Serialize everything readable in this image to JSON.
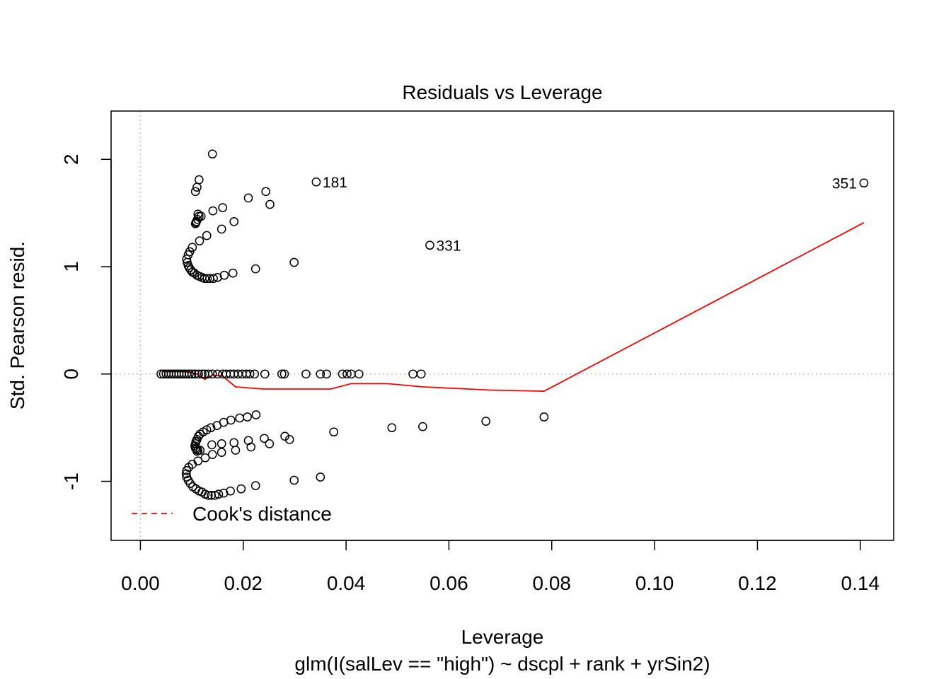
{
  "chart_data": {
    "type": "scatter",
    "title": "Residuals vs Leverage",
    "xlabel": "Leverage",
    "subtitle": "glm(I(salLev == \"high\") ~ dscpl + rank + yrSin2)",
    "ylabel": "Std. Pearson resid.",
    "xlim": [
      -0.0057,
      0.1465
    ],
    "ylim": [
      -1.55,
      2.45
    ],
    "x_ticks": [
      "0.00",
      "0.02",
      "0.04",
      "0.06",
      "0.08",
      "0.10",
      "0.12",
      "0.14"
    ],
    "y_ticks": [
      "-1",
      "0",
      "1",
      "2"
    ],
    "reference_lines": {
      "x": 0,
      "y": 0,
      "style": "dotted",
      "color": "#bebebe"
    },
    "point_color": "#000000",
    "smooth_color": "#ff0000",
    "legend": {
      "position": "bottom-left",
      "entries": [
        "Cook's distance"
      ],
      "line_style": "dashed",
      "color": "#ff0000"
    },
    "labeled_points": [
      {
        "label": "181",
        "x": 0.0342,
        "y": 1.79
      },
      {
        "label": "331",
        "x": 0.0563,
        "y": 1.2
      },
      {
        "label": "351",
        "x": 0.1407,
        "y": 1.78
      }
    ],
    "points": [
      [
        0.014,
        2.05
      ],
      [
        0.0114,
        1.81
      ],
      [
        0.011,
        1.74
      ],
      [
        0.0107,
        1.7
      ],
      [
        0.016,
        1.55
      ],
      [
        0.0141,
        1.52
      ],
      [
        0.0244,
        1.7
      ],
      [
        0.021,
        1.64
      ],
      [
        0.0252,
        1.58
      ],
      [
        0.0182,
        1.42
      ],
      [
        0.0158,
        1.35
      ],
      [
        0.0129,
        1.29
      ],
      [
        0.0112,
        1.49
      ],
      [
        0.0114,
        1.47
      ],
      [
        0.0118,
        1.47
      ],
      [
        0.0111,
        1.44
      ],
      [
        0.0109,
        1.42
      ],
      [
        0.0107,
        1.4
      ],
      [
        0.0108,
        1.41
      ],
      [
        0.0115,
        1.24
      ],
      [
        0.0101,
        1.18
      ],
      [
        0.0096,
        1.14
      ],
      [
        0.0093,
        1.11
      ],
      [
        0.009,
        1.07
      ],
      [
        0.0091,
        1.04
      ],
      [
        0.0093,
        1.01
      ],
      [
        0.0095,
        0.99
      ],
      [
        0.0098,
        0.97
      ],
      [
        0.0101,
        0.95
      ],
      [
        0.0105,
        0.94
      ],
      [
        0.011,
        0.92
      ],
      [
        0.0115,
        0.91
      ],
      [
        0.012,
        0.9
      ],
      [
        0.0125,
        0.89
      ],
      [
        0.013,
        0.89
      ],
      [
        0.0135,
        0.89
      ],
      [
        0.0142,
        0.89
      ],
      [
        0.015,
        0.9
      ],
      [
        0.0163,
        0.92
      ],
      [
        0.018,
        0.94
      ],
      [
        0.0224,
        0.98
      ],
      [
        0.0299,
        1.04
      ],
      [
        0.004,
        0.0
      ],
      [
        0.0045,
        0.0
      ],
      [
        0.005,
        0.0
      ],
      [
        0.0055,
        0.0
      ],
      [
        0.006,
        0.0
      ],
      [
        0.0065,
        0.0
      ],
      [
        0.007,
        0.0
      ],
      [
        0.0075,
        0.0
      ],
      [
        0.008,
        0.0
      ],
      [
        0.0085,
        0.0
      ],
      [
        0.009,
        0.0
      ],
      [
        0.0095,
        0.0
      ],
      [
        0.01,
        0.0
      ],
      [
        0.0106,
        0.0
      ],
      [
        0.0113,
        0.0
      ],
      [
        0.012,
        0.0
      ],
      [
        0.0125,
        0.0
      ],
      [
        0.0132,
        0.0
      ],
      [
        0.014,
        0.0
      ],
      [
        0.015,
        0.0
      ],
      [
        0.016,
        0.0
      ],
      [
        0.0167,
        0.0
      ],
      [
        0.0175,
        0.0
      ],
      [
        0.0182,
        0.0
      ],
      [
        0.019,
        0.0
      ],
      [
        0.0198,
        0.0
      ],
      [
        0.0206,
        0.0
      ],
      [
        0.0213,
        0.0
      ],
      [
        0.0222,
        0.0
      ],
      [
        0.0242,
        0.0
      ],
      [
        0.0275,
        0.0
      ],
      [
        0.028,
        0.0
      ],
      [
        0.0322,
        0.0
      ],
      [
        0.035,
        0.0
      ],
      [
        0.0362,
        0.0
      ],
      [
        0.0393,
        0.0
      ],
      [
        0.0402,
        0.0
      ],
      [
        0.041,
        0.0
      ],
      [
        0.0425,
        0.0
      ],
      [
        0.053,
        0.0
      ],
      [
        0.0546,
        0.0
      ],
      [
        0.0225,
        -0.38
      ],
      [
        0.0208,
        -0.4
      ],
      [
        0.0193,
        -0.41
      ],
      [
        0.0176,
        -0.43
      ],
      [
        0.0162,
        -0.45
      ],
      [
        0.0149,
        -0.48
      ],
      [
        0.0137,
        -0.5
      ],
      [
        0.0129,
        -0.52
      ],
      [
        0.0122,
        -0.54
      ],
      [
        0.0116,
        -0.56
      ],
      [
        0.0113,
        -0.58
      ],
      [
        0.011,
        -0.61
      ],
      [
        0.0108,
        -0.63
      ],
      [
        0.0107,
        -0.65
      ],
      [
        0.0106,
        -0.67
      ],
      [
        0.0107,
        -0.69
      ],
      [
        0.0109,
        -0.7
      ],
      [
        0.0112,
        -0.71
      ],
      [
        0.0116,
        -0.71
      ],
      [
        0.011,
        -0.72
      ],
      [
        0.0139,
        -0.66
      ],
      [
        0.0158,
        -0.65
      ],
      [
        0.0182,
        -0.64
      ],
      [
        0.021,
        -0.62
      ],
      [
        0.0241,
        -0.6
      ],
      [
        0.0281,
        -0.58
      ],
      [
        0.029,
        -0.61
      ],
      [
        0.0251,
        -0.65
      ],
      [
        0.0215,
        -0.68
      ],
      [
        0.0185,
        -0.71
      ],
      [
        0.0158,
        -0.73
      ],
      [
        0.014,
        -0.75
      ],
      [
        0.0126,
        -0.78
      ],
      [
        0.0112,
        -0.81
      ],
      [
        0.0101,
        -0.84
      ],
      [
        0.0094,
        -0.87
      ],
      [
        0.009,
        -0.9
      ],
      [
        0.0089,
        -0.93
      ],
      [
        0.009,
        -0.96
      ],
      [
        0.0093,
        -0.99
      ],
      [
        0.0097,
        -1.02
      ],
      [
        0.0102,
        -1.05
      ],
      [
        0.0108,
        -1.07
      ],
      [
        0.0114,
        -1.09
      ],
      [
        0.012,
        -1.1
      ],
      [
        0.0126,
        -1.12
      ],
      [
        0.0132,
        -1.13
      ],
      [
        0.0138,
        -1.13
      ],
      [
        0.0145,
        -1.13
      ],
      [
        0.0152,
        -1.12
      ],
      [
        0.0162,
        -1.11
      ],
      [
        0.0175,
        -1.09
      ],
      [
        0.0196,
        -1.07
      ],
      [
        0.0224,
        -1.04
      ],
      [
        0.0299,
        -0.99
      ],
      [
        0.035,
        -0.96
      ],
      [
        0.0376,
        -0.54
      ],
      [
        0.0489,
        -0.5
      ],
      [
        0.0549,
        -0.49
      ],
      [
        0.0672,
        -0.44
      ],
      [
        0.0785,
        -0.4
      ],
      [
        0.0342,
        1.79
      ],
      [
        0.0563,
        1.2
      ],
      [
        0.1407,
        1.78
      ]
    ],
    "cooks_smooth": [
      [
        0.004,
        0.03
      ],
      [
        0.006,
        0.03
      ],
      [
        0.009,
        0.02
      ],
      [
        0.011,
        0.0
      ],
      [
        0.0125,
        -0.05
      ],
      [
        0.014,
        -0.01
      ],
      [
        0.016,
        -0.02
      ],
      [
        0.0185,
        -0.12
      ],
      [
        0.024,
        -0.14
      ],
      [
        0.037,
        -0.14
      ],
      [
        0.041,
        -0.09
      ],
      [
        0.048,
        -0.09
      ],
      [
        0.055,
        -0.12
      ],
      [
        0.068,
        -0.15
      ],
      [
        0.0785,
        -0.16
      ],
      [
        0.1407,
        1.41
      ]
    ]
  }
}
